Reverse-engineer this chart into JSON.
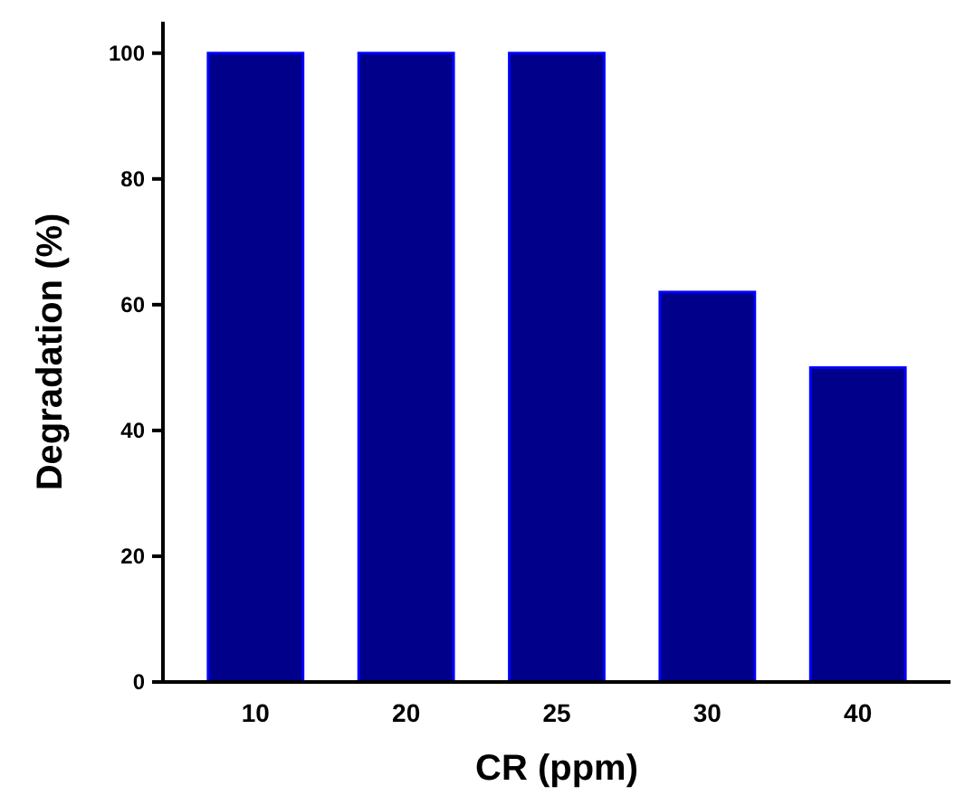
{
  "chart_data": {
    "type": "bar",
    "xlabel": "CR (ppm)",
    "ylabel": "Degradation (%)",
    "categories": [
      "10",
      "20",
      "25",
      "30",
      "40"
    ],
    "values": [
      100,
      100,
      100,
      62,
      50
    ],
    "color": "#00008b",
    "ylim": [
      0,
      105
    ],
    "yticks": [
      0,
      20,
      40,
      60,
      80,
      100
    ],
    "grid": false
  }
}
